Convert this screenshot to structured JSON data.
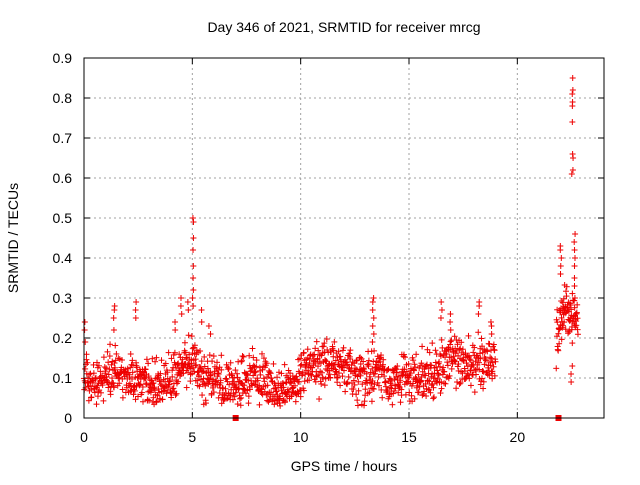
{
  "chart_data": {
    "type": "scatter",
    "title": "Day 346 of 2021, SRMTID for receiver mrcg",
    "xlabel": "GPS time / hours",
    "ylabel": "SRMTID / TECUs",
    "xlim": [
      0,
      24
    ],
    "ylim": [
      0,
      0.9
    ],
    "xticks": [
      "0",
      "5",
      "10",
      "15",
      "20"
    ],
    "yticks": [
      "0",
      "0.1",
      "0.2",
      "0.3",
      "0.4",
      "0.5",
      "0.6",
      "0.7",
      "0.8",
      "0.9"
    ],
    "grid": true,
    "marker_color": "#ee0000",
    "segments": [
      {
        "start": 0.0,
        "end": 19.0,
        "step": 0.015,
        "baseline": [
          [
            0,
            0.11
          ],
          [
            0.5,
            0.08
          ],
          [
            1.0,
            0.1
          ],
          [
            1.5,
            0.13
          ],
          [
            2.0,
            0.09
          ],
          [
            2.5,
            0.1
          ],
          [
            3.0,
            0.08
          ],
          [
            3.5,
            0.1
          ],
          [
            4.0,
            0.1
          ],
          [
            4.5,
            0.13
          ],
          [
            5.0,
            0.14
          ],
          [
            5.5,
            0.11
          ],
          [
            6.0,
            0.09
          ],
          [
            6.5,
            0.08
          ],
          [
            7.0,
            0.08
          ],
          [
            7.5,
            0.09
          ],
          [
            8.0,
            0.1
          ],
          [
            8.5,
            0.09
          ],
          [
            9.0,
            0.06
          ],
          [
            9.5,
            0.08
          ],
          [
            10.0,
            0.1
          ],
          [
            10.5,
            0.12
          ],
          [
            11.0,
            0.13
          ],
          [
            11.5,
            0.13
          ],
          [
            12.0,
            0.12
          ],
          [
            12.5,
            0.1
          ],
          [
            13.0,
            0.09
          ],
          [
            13.5,
            0.12
          ],
          [
            14.0,
            0.09
          ],
          [
            14.5,
            0.09
          ],
          [
            15.0,
            0.1
          ],
          [
            15.5,
            0.1
          ],
          [
            16.0,
            0.11
          ],
          [
            16.5,
            0.12
          ],
          [
            17.0,
            0.15
          ],
          [
            17.5,
            0.13
          ],
          [
            18.0,
            0.13
          ],
          [
            18.5,
            0.14
          ],
          [
            19.0,
            0.15
          ]
        ]
      },
      {
        "start": 21.8,
        "end": 22.8,
        "step": 0.012,
        "baseline": [
          [
            21.8,
            0.2
          ],
          [
            22.0,
            0.24
          ],
          [
            22.2,
            0.28
          ],
          [
            22.4,
            0.25
          ],
          [
            22.6,
            0.24
          ],
          [
            22.8,
            0.23
          ]
        ]
      }
    ],
    "spikes": [
      {
        "x": 0.05,
        "values": [
          0.24,
          0.22,
          0.19
        ]
      },
      {
        "x": 1.4,
        "values": [
          0.28,
          0.27,
          0.25,
          0.22
        ]
      },
      {
        "x": 2.4,
        "values": [
          0.29,
          0.27,
          0.25
        ]
      },
      {
        "x": 4.2,
        "values": [
          0.24,
          0.22
        ]
      },
      {
        "x": 4.5,
        "values": [
          0.3,
          0.28,
          0.26
        ]
      },
      {
        "x": 4.8,
        "values": [
          0.29,
          0.27
        ]
      },
      {
        "x": 5.05,
        "values": [
          0.5,
          0.49,
          0.45,
          0.42,
          0.38,
          0.35,
          0.32,
          0.3,
          0.28
        ]
      },
      {
        "x": 5.4,
        "values": [
          0.27,
          0.24
        ]
      },
      {
        "x": 5.8,
        "values": [
          0.23,
          0.21
        ]
      },
      {
        "x": 13.35,
        "values": [
          0.3,
          0.29,
          0.27,
          0.25,
          0.23,
          0.21,
          0.19
        ]
      },
      {
        "x": 16.5,
        "values": [
          0.29,
          0.27,
          0.25
        ]
      },
      {
        "x": 16.9,
        "values": [
          0.26,
          0.24,
          0.22
        ]
      },
      {
        "x": 18.2,
        "values": [
          0.29,
          0.28,
          0.26
        ]
      },
      {
        "x": 18.8,
        "values": [
          0.24,
          0.23,
          0.21
        ]
      },
      {
        "x": 22.0,
        "values": [
          0.43,
          0.42,
          0.4,
          0.38,
          0.36
        ]
      },
      {
        "x": 22.55,
        "values": [
          0.85,
          0.82,
          0.81,
          0.79,
          0.78,
          0.74,
          0.66,
          0.65,
          0.62,
          0.61
        ]
      },
      {
        "x": 22.65,
        "values": [
          0.46,
          0.44,
          0.42,
          0.4,
          0.38,
          0.35,
          0.33,
          0.3
        ]
      },
      {
        "x": 22.5,
        "values": [
          0.09,
          0.11,
          0.13
        ]
      }
    ],
    "gap_markers": [
      {
        "x": 7.0,
        "y": 0
      },
      {
        "x": 21.9,
        "y": 0
      }
    ]
  }
}
